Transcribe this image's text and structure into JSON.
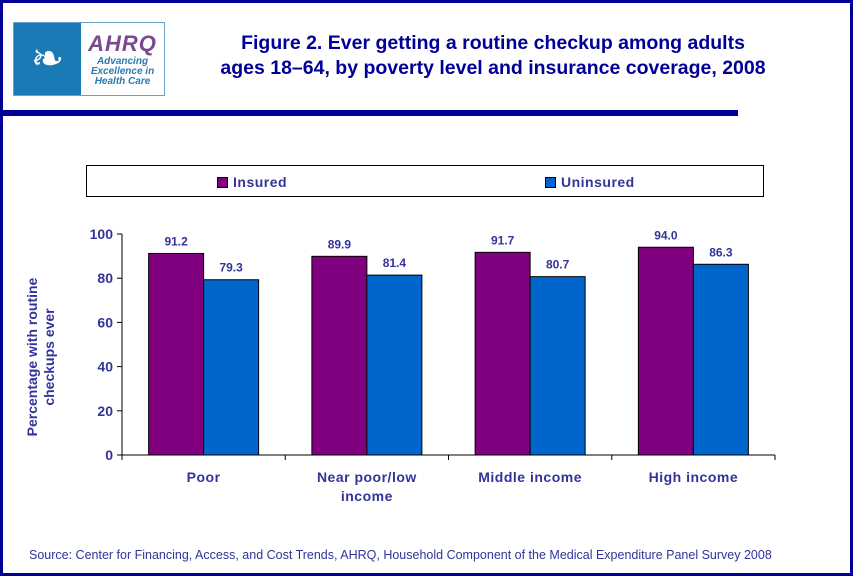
{
  "logo": {
    "org": "AHRQ",
    "tagline": [
      "Advancing",
      "Excellence in",
      "Health Care"
    ],
    "seal": "Department of Health & Human Services USA"
  },
  "title": [
    "Figure 2. Ever getting a routine checkup among adults",
    "ages 18–64, by poverty level and insurance coverage, 2008"
  ],
  "source": "Source: Center for Financing, Access, and Cost Trends, AHRQ, Household Component of the Medical Expenditure Panel Survey 2008",
  "chart_data": {
    "type": "bar",
    "categories": [
      [
        "Poor"
      ],
      [
        "Near poor/low",
        "income"
      ],
      [
        "Middle income"
      ],
      [
        "High income"
      ]
    ],
    "series": [
      {
        "name": "Insured",
        "color": "#800080",
        "values": [
          91.2,
          89.9,
          91.7,
          94.0
        ]
      },
      {
        "name": "Uninsured",
        "color": "#0066CC",
        "values": [
          79.3,
          81.4,
          80.7,
          86.3
        ]
      }
    ],
    "ylabel": [
      "Percentage with routine",
      "checkups ever"
    ],
    "ylim": [
      0,
      100
    ],
    "yticks": [
      0,
      20,
      40,
      60,
      80,
      100
    ],
    "legend": "top"
  }
}
